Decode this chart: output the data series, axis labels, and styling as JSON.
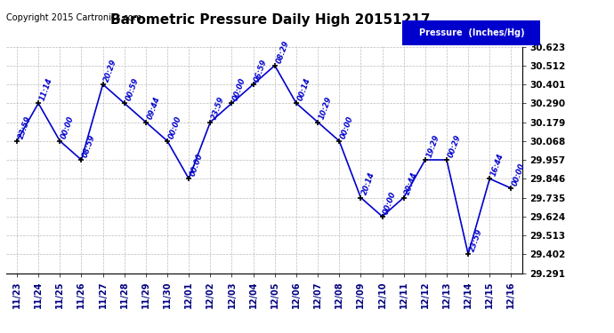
{
  "title": "Barometric Pressure Daily High 20151217",
  "copyright": "Copyright 2015 Cartronics.com",
  "legend_label": "Pressure  (Inches/Hg)",
  "x_labels": [
    "11/23",
    "11/24",
    "11/25",
    "11/26",
    "11/27",
    "11/28",
    "11/29",
    "11/30",
    "12/01",
    "12/02",
    "12/03",
    "12/04",
    "12/05",
    "12/06",
    "12/07",
    "12/08",
    "12/09",
    "12/10",
    "12/11",
    "12/12",
    "12/13",
    "12/14",
    "12/15",
    "12/16"
  ],
  "y_values": [
    30.068,
    30.29,
    30.068,
    29.957,
    30.401,
    30.29,
    30.179,
    30.068,
    29.846,
    30.179,
    30.29,
    30.401,
    30.512,
    30.29,
    30.179,
    30.068,
    29.735,
    29.624,
    29.735,
    29.957,
    29.957,
    29.402,
    29.846,
    29.79
  ],
  "time_labels": [
    "23:59",
    "11:14",
    "00:00",
    "08:59",
    "20:29",
    "00:59",
    "09:44",
    "00:00",
    "00:00",
    "23:59",
    "00:00",
    "06:59",
    "08:29",
    "00:14",
    "10:29",
    "00:00",
    "20:14",
    "00:00",
    "20:44",
    "19:29",
    "00:29",
    "23:59",
    "16:44",
    "00:00"
  ],
  "y_min": 29.291,
  "y_max": 30.623,
  "line_color": "#0000CC",
  "marker_color": "#000000",
  "grid_color": "#BBBBBB",
  "bg_color": "#FFFFFF",
  "title_color": "#000000",
  "label_color": "#0000CC",
  "legend_bg": "#0000CC",
  "legend_text": "#FFFFFF",
  "y_ticks": [
    29.291,
    29.402,
    29.513,
    29.624,
    29.735,
    29.846,
    29.957,
    30.068,
    30.179,
    30.29,
    30.401,
    30.512,
    30.623
  ]
}
